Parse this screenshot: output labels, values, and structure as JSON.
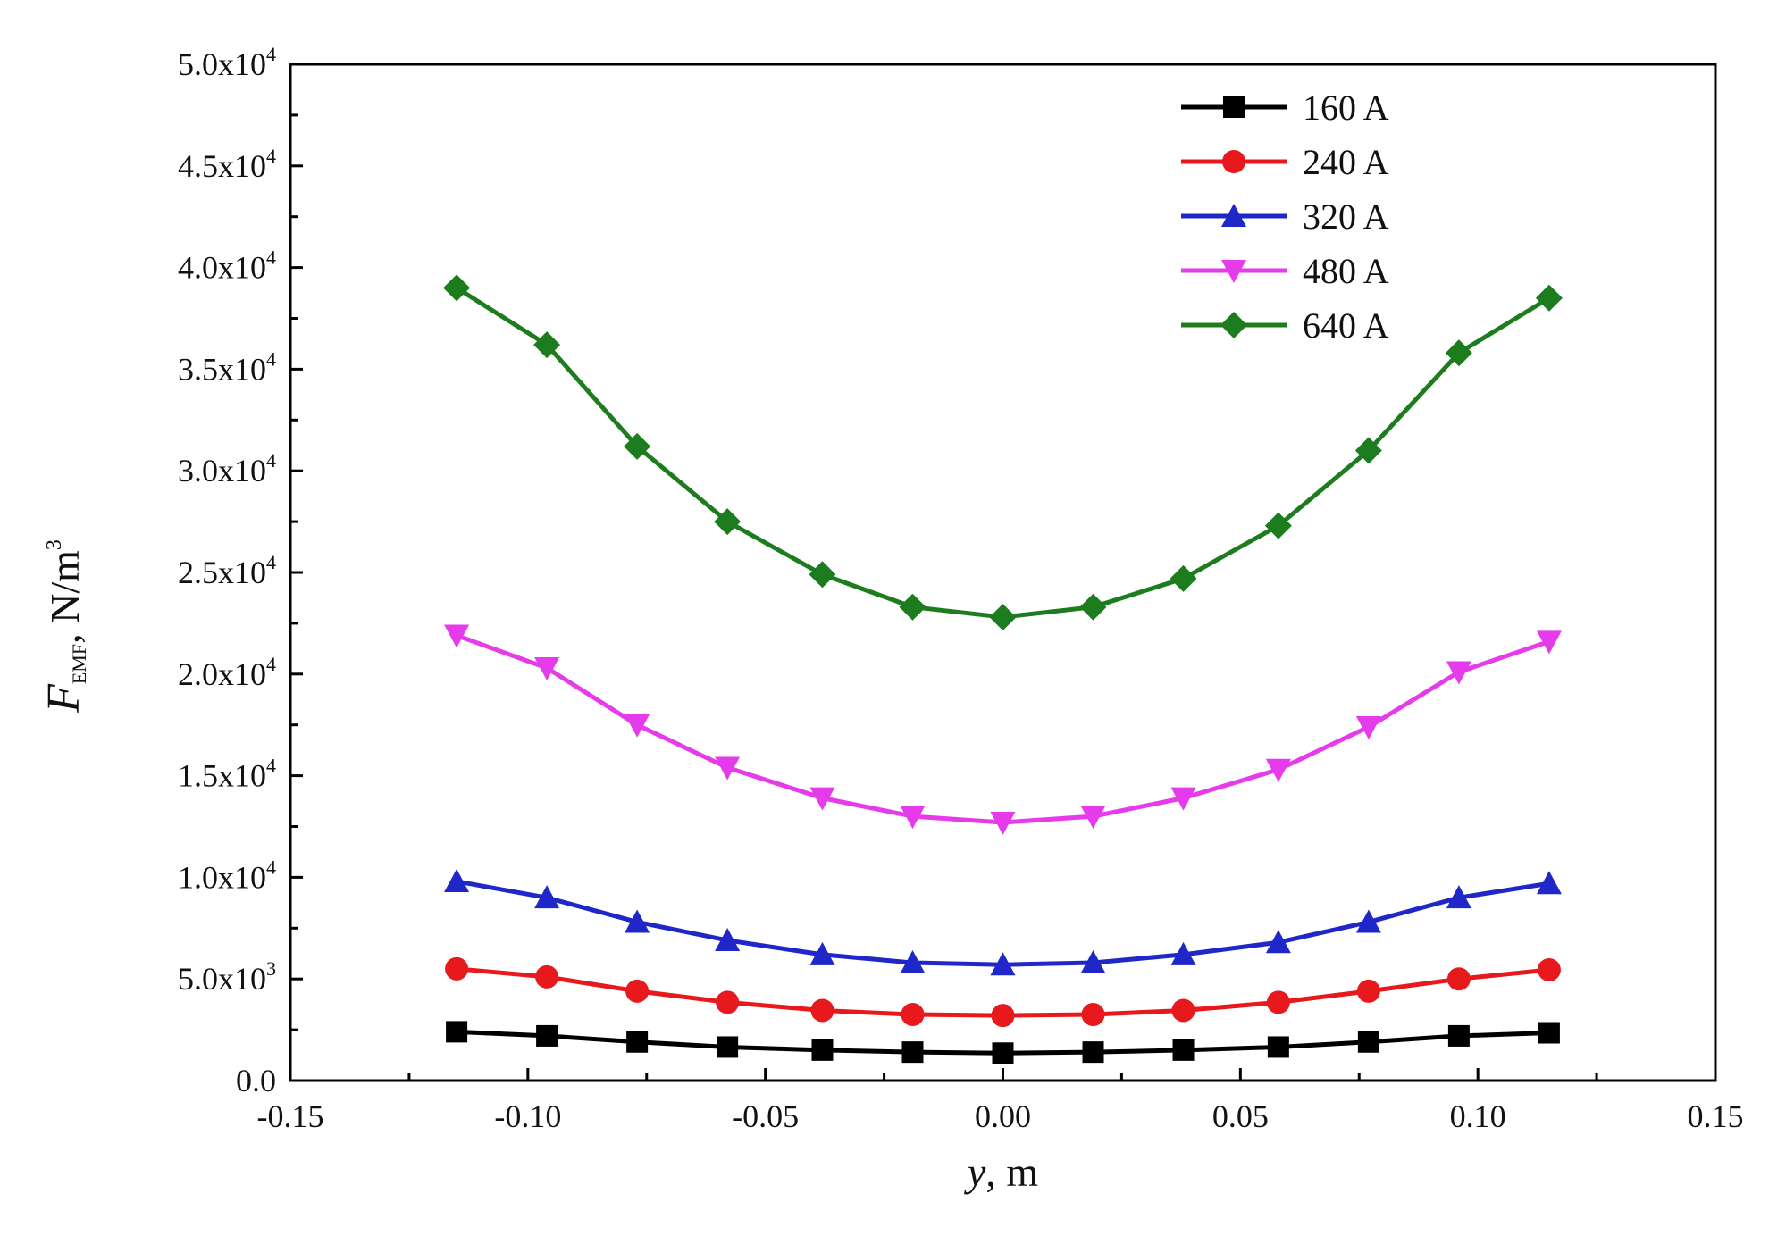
{
  "chart_data": {
    "type": "line",
    "title": "",
    "xlabel": {
      "var": "y",
      "rest": ", m"
    },
    "ylabel": {
      "var": "F",
      "sub": "EMF",
      "rest": ", N/m",
      "sup": "3"
    },
    "xlim": [
      -0.15,
      0.15
    ],
    "ylim": [
      0,
      50000
    ],
    "x_ticks": [
      {
        "value": -0.15,
        "label": "-0.15"
      },
      {
        "value": -0.1,
        "label": "-0.10"
      },
      {
        "value": -0.05,
        "label": "-0.05"
      },
      {
        "value": 0.0,
        "label": "0.00"
      },
      {
        "value": 0.05,
        "label": "0.05"
      },
      {
        "value": 0.1,
        "label": "0.10"
      },
      {
        "value": 0.15,
        "label": "0.15"
      }
    ],
    "y_ticks": [
      {
        "value": 0,
        "mant": "0.0",
        "exp": ""
      },
      {
        "value": 5000,
        "mant": "5.0x10",
        "exp": "3"
      },
      {
        "value": 10000,
        "mant": "1.0x10",
        "exp": "4"
      },
      {
        "value": 15000,
        "mant": "1.5x10",
        "exp": "4"
      },
      {
        "value": 20000,
        "mant": "2.0x10",
        "exp": "4"
      },
      {
        "value": 25000,
        "mant": "2.5x10",
        "exp": "4"
      },
      {
        "value": 30000,
        "mant": "3.0x10",
        "exp": "4"
      },
      {
        "value": 35000,
        "mant": "3.5x10",
        "exp": "4"
      },
      {
        "value": 40000,
        "mant": "4.0x10",
        "exp": "4"
      },
      {
        "value": 45000,
        "mant": "4.5x10",
        "exp": "4"
      },
      {
        "value": 50000,
        "mant": "5.0x10",
        "exp": "4"
      }
    ],
    "legend_position": "top-right",
    "x": [
      -0.115,
      -0.096,
      -0.077,
      -0.058,
      -0.038,
      -0.019,
      0.0,
      0.019,
      0.038,
      0.058,
      0.077,
      0.096,
      0.115
    ],
    "series": [
      {
        "name": "160 A",
        "color": "#000000",
        "marker": "square",
        "values": [
          2400,
          2200,
          1900,
          1650,
          1500,
          1400,
          1350,
          1400,
          1500,
          1650,
          1900,
          2200,
          2350
        ]
      },
      {
        "name": "240 A",
        "color": "#e8191c",
        "marker": "circle",
        "values": [
          5500,
          5100,
          4400,
          3850,
          3450,
          3250,
          3200,
          3250,
          3450,
          3850,
          4400,
          5000,
          5450
        ]
      },
      {
        "name": "320 A",
        "color": "#1f27c9",
        "marker": "triangle-up",
        "values": [
          9800,
          9000,
          7800,
          6900,
          6200,
          5800,
          5700,
          5800,
          6200,
          6800,
          7800,
          9000,
          9700
        ]
      },
      {
        "name": "480 A",
        "color": "#e63bea",
        "marker": "triangle-down",
        "values": [
          21900,
          20300,
          17500,
          15400,
          13900,
          13000,
          12700,
          13000,
          13900,
          15300,
          17400,
          20100,
          21600
        ]
      },
      {
        "name": "640 A",
        "color": "#1d7d1e",
        "marker": "diamond",
        "values": [
          39000,
          36200,
          31200,
          27500,
          24900,
          23300,
          22800,
          23300,
          24700,
          27300,
          31000,
          35800,
          38500
        ]
      }
    ]
  }
}
